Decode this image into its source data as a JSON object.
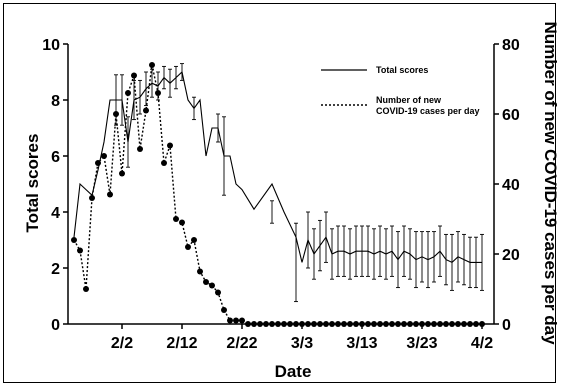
{
  "chart_data": {
    "type": "line",
    "xlabel": "Date",
    "ylabel": "Total scores",
    "y2label": "Number of new COVID-19 cases per day",
    "x_tick_labels": [
      "2/2",
      "2/12",
      "2/22",
      "3/3",
      "3/13",
      "3/23",
      "4/2"
    ],
    "x_tick_days": [
      8,
      18,
      28,
      38,
      48,
      58,
      68
    ],
    "x_range_days": [
      -1,
      70
    ],
    "x_day_origin": "1/25",
    "ylim": [
      0,
      10
    ],
    "yticks": [
      0,
      2,
      4,
      6,
      8,
      10
    ],
    "y2lim": [
      0,
      80
    ],
    "y2ticks": [
      0,
      20,
      40,
      60,
      80
    ],
    "legend_position": "top-right",
    "series": [
      {
        "name": "Total scores",
        "axis": "left",
        "style": "solid",
        "x": [
          0,
          1,
          2,
          3,
          4,
          5,
          6,
          7,
          8,
          9,
          10,
          11,
          12,
          13,
          14,
          15,
          16,
          17,
          18,
          19,
          20,
          21,
          22,
          23,
          24,
          25,
          26,
          27,
          28,
          30,
          33,
          35,
          37,
          38,
          39,
          40,
          41,
          42,
          43,
          44,
          45,
          46,
          47,
          48,
          49,
          50,
          51,
          52,
          53,
          54,
          55,
          56,
          57,
          58,
          59,
          60,
          61,
          62,
          63,
          64,
          65,
          66,
          67,
          68
        ],
        "y": [
          3.1,
          5.0,
          4.8,
          4.6,
          5.5,
          6.5,
          8.0,
          8.0,
          8.0,
          6.5,
          8.0,
          8.1,
          8.4,
          8.6,
          8.5,
          8.8,
          8.6,
          8.8,
          9.0,
          8.0,
          7.7,
          8.0,
          6.0,
          7.0,
          7.0,
          6.0,
          6.0,
          5.0,
          4.8,
          4.1,
          5.0,
          4.0,
          3.1,
          2.2,
          3.0,
          2.5,
          2.8,
          3.1,
          2.5,
          2.6,
          2.6,
          2.5,
          2.6,
          2.6,
          2.6,
          2.5,
          2.6,
          2.5,
          2.6,
          2.3,
          2.6,
          2.5,
          2.3,
          2.4,
          2.3,
          2.4,
          2.6,
          2.3,
          2.2,
          2.4,
          2.3,
          2.2,
          2.2,
          2.2
        ],
        "error_bars": [
          {
            "x": 7,
            "y": 8.0,
            "err": 0.9
          },
          {
            "x": 8,
            "y": 8.0,
            "err": 0.9
          },
          {
            "x": 9,
            "y": 6.5,
            "err": 0.9
          },
          {
            "x": 10,
            "y": 8.0,
            "err": 0.7
          },
          {
            "x": 11,
            "y": 8.1,
            "err": 0.6
          },
          {
            "x": 12,
            "y": 8.4,
            "err": 0.6
          },
          {
            "x": 13,
            "y": 8.6,
            "err": 0.5
          },
          {
            "x": 14,
            "y": 8.5,
            "err": 0.5
          },
          {
            "x": 15,
            "y": 8.8,
            "err": 0.4
          },
          {
            "x": 16,
            "y": 8.6,
            "err": 0.5
          },
          {
            "x": 17,
            "y": 8.8,
            "err": 0.4
          },
          {
            "x": 18,
            "y": 9.0,
            "err": 0.3
          },
          {
            "x": 20,
            "y": 7.7,
            "err": 0.4
          },
          {
            "x": 24,
            "y": 7.0,
            "err": 0.5
          },
          {
            "x": 25,
            "y": 6.0,
            "err": 1.4
          },
          {
            "x": 33,
            "y": 4.0,
            "err": 0.4
          },
          {
            "x": 37,
            "y": 2.2,
            "err": 1.4
          },
          {
            "x": 39,
            "y": 3.0,
            "err": 1.0
          },
          {
            "x": 40,
            "y": 2.5,
            "err": 0.9
          },
          {
            "x": 41,
            "y": 2.8,
            "err": 0.9
          },
          {
            "x": 42,
            "y": 3.1,
            "err": 0.9
          },
          {
            "x": 43,
            "y": 2.5,
            "err": 0.9
          },
          {
            "x": 44,
            "y": 2.6,
            "err": 0.9
          },
          {
            "x": 45,
            "y": 2.6,
            "err": 0.9
          },
          {
            "x": 46,
            "y": 2.5,
            "err": 0.9
          },
          {
            "x": 47,
            "y": 2.6,
            "err": 0.9
          },
          {
            "x": 48,
            "y": 2.6,
            "err": 0.9
          },
          {
            "x": 49,
            "y": 2.6,
            "err": 0.9
          },
          {
            "x": 50,
            "y": 2.5,
            "err": 0.9
          },
          {
            "x": 51,
            "y": 2.6,
            "err": 0.9
          },
          {
            "x": 52,
            "y": 2.5,
            "err": 0.9
          },
          {
            "x": 53,
            "y": 2.6,
            "err": 0.9
          },
          {
            "x": 54,
            "y": 2.3,
            "err": 1.0
          },
          {
            "x": 55,
            "y": 2.6,
            "err": 0.9
          },
          {
            "x": 56,
            "y": 2.5,
            "err": 0.9
          },
          {
            "x": 57,
            "y": 2.3,
            "err": 1.0
          },
          {
            "x": 58,
            "y": 2.4,
            "err": 0.9
          },
          {
            "x": 59,
            "y": 2.3,
            "err": 1.0
          },
          {
            "x": 60,
            "y": 2.4,
            "err": 0.9
          },
          {
            "x": 61,
            "y": 2.6,
            "err": 0.9
          },
          {
            "x": 62,
            "y": 2.3,
            "err": 0.9
          },
          {
            "x": 63,
            "y": 2.2,
            "err": 1.0
          },
          {
            "x": 64,
            "y": 2.4,
            "err": 0.9
          },
          {
            "x": 65,
            "y": 2.3,
            "err": 0.9
          },
          {
            "x": 66,
            "y": 2.2,
            "err": 0.9
          },
          {
            "x": 67,
            "y": 2.2,
            "err": 0.9
          },
          {
            "x": 68,
            "y": 2.2,
            "err": 1.0
          }
        ]
      },
      {
        "name": "Number of new COVID-19 cases per day",
        "axis": "right",
        "style": "dotted",
        "markers": "filled-circle",
        "x": [
          0,
          1,
          2,
          3,
          4,
          5,
          6,
          7,
          8,
          9,
          10,
          11,
          12,
          13,
          14,
          15,
          16,
          17,
          18,
          19,
          20,
          21,
          22,
          23,
          24,
          25,
          26,
          27,
          28,
          29,
          30,
          31,
          32,
          33,
          34,
          35,
          36,
          37,
          38,
          39,
          40,
          41,
          42,
          43,
          44,
          45,
          46,
          47,
          48,
          49,
          50,
          51,
          52,
          53,
          54,
          55,
          56,
          57,
          58,
          59,
          60,
          61,
          62,
          63,
          64,
          65,
          66,
          67,
          68
        ],
        "y": [
          24,
          21,
          10,
          36,
          46,
          48,
          37,
          60,
          43,
          66,
          71,
          50,
          61,
          74,
          66,
          46,
          51,
          30,
          29,
          22,
          24,
          15,
          12,
          11,
          9,
          4,
          1,
          1,
          1,
          0,
          0,
          0,
          0,
          0,
          0,
          0,
          0,
          0,
          0,
          0,
          0,
          0,
          0,
          0,
          0,
          0,
          0,
          0,
          0,
          0,
          0,
          0,
          0,
          0,
          0,
          0,
          0,
          0,
          0,
          0,
          0,
          0,
          0,
          0,
          0,
          0,
          0,
          0,
          0
        ]
      }
    ]
  }
}
